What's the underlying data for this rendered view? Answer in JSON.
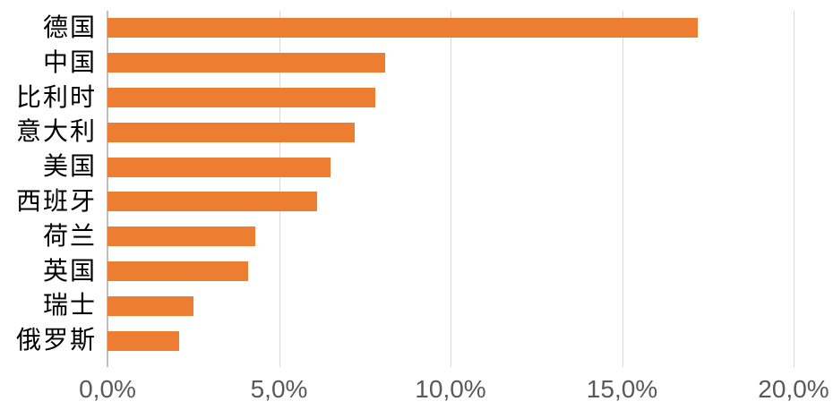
{
  "chart_data": {
    "type": "bar",
    "orientation": "horizontal",
    "title": "",
    "xlabel": "",
    "ylabel": "",
    "categories": [
      "德国",
      "中国",
      "比利时",
      "意大利",
      "美国",
      "西班牙",
      "荷兰",
      "英国",
      "瑞士",
      "俄罗斯"
    ],
    "values": [
      17.2,
      8.1,
      7.8,
      7.2,
      6.5,
      6.1,
      4.3,
      4.1,
      2.5,
      2.1
    ],
    "unit": "%",
    "xlim": [
      0,
      20
    ],
    "x_ticks": [
      {
        "value": 0,
        "label": "0,0%"
      },
      {
        "value": 5,
        "label": "5,0%"
      },
      {
        "value": 10,
        "label": "10,0%"
      },
      {
        "value": 15,
        "label": "15,0%"
      },
      {
        "value": 20,
        "label": "20,0%"
      }
    ],
    "grid": true,
    "legend": false,
    "colors": {
      "bar": "#ed7d31",
      "gridline": "#d9d9d9",
      "axis_line": "#bfbfbf",
      "x_tick_label": "#595959",
      "category_label": "#000000"
    }
  }
}
